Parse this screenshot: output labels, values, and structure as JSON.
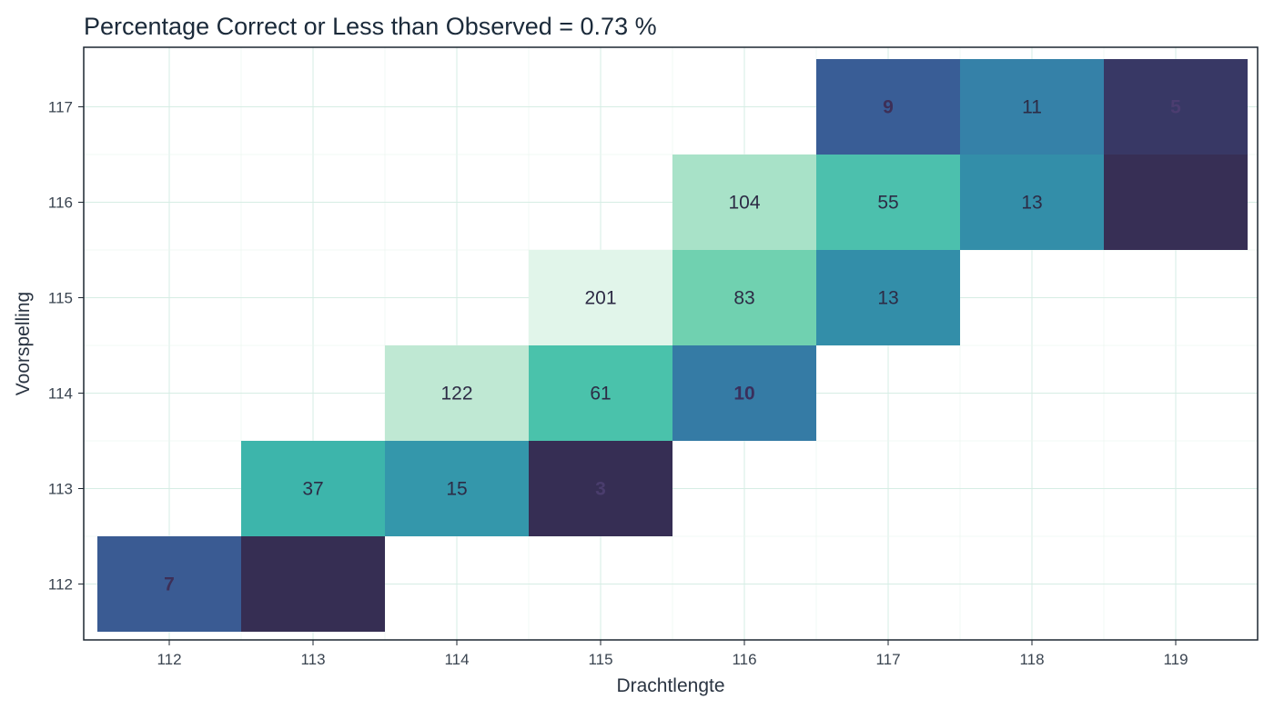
{
  "chart_data": {
    "type": "heatmap",
    "title": "Percentage Correct or Less than Observed =  0.73 %",
    "xlabel": "Drachtlengte",
    "ylabel": "Voorspelling",
    "x_categories": [
      "112",
      "113",
      "114",
      "115",
      "116",
      "117",
      "118",
      "119"
    ],
    "y_categories": [
      "112",
      "113",
      "114",
      "115",
      "116",
      "117"
    ],
    "grid": true,
    "legend": "none",
    "cells": [
      {
        "x": "112",
        "y": "112",
        "value": 7,
        "label": "7",
        "fill": "#3a5b93",
        "text_color": "#3d2f57",
        "bold": true
      },
      {
        "x": "113",
        "y": "112",
        "value": 1,
        "label": "",
        "fill": "#362e53",
        "text_color": "#362e53",
        "bold": true
      },
      {
        "x": "113",
        "y": "113",
        "value": 37,
        "label": "37",
        "fill": "#3db5ab",
        "text_color": "#2d2b45",
        "bold": false
      },
      {
        "x": "114",
        "y": "113",
        "value": 15,
        "label": "15",
        "fill": "#3497ab",
        "text_color": "#2d2b45",
        "bold": false
      },
      {
        "x": "115",
        "y": "113",
        "value": 3,
        "label": "3",
        "fill": "#362e54",
        "text_color": "#4a3d6d",
        "bold": true
      },
      {
        "x": "114",
        "y": "114",
        "value": 122,
        "label": "122",
        "fill": "#bfe8d3",
        "text_color": "#2d2b45",
        "bold": false
      },
      {
        "x": "115",
        "y": "114",
        "value": 61,
        "label": "61",
        "fill": "#4ac2ab",
        "text_color": "#2d2b45",
        "bold": false
      },
      {
        "x": "116",
        "y": "114",
        "value": 10,
        "label": "10",
        "fill": "#357ba5",
        "text_color": "#3a2f5c",
        "bold": true
      },
      {
        "x": "115",
        "y": "115",
        "value": 201,
        "label": "201",
        "fill": "#e1f5ea",
        "text_color": "#2d2b45",
        "bold": false
      },
      {
        "x": "116",
        "y": "115",
        "value": 83,
        "label": "83",
        "fill": "#70d1b0",
        "text_color": "#2d2b45",
        "bold": false
      },
      {
        "x": "117",
        "y": "115",
        "value": 13,
        "label": "13",
        "fill": "#338ea9",
        "text_color": "#2d2b45",
        "bold": false
      },
      {
        "x": "116",
        "y": "116",
        "value": 104,
        "label": "104",
        "fill": "#a8e2c8",
        "text_color": "#2d2b45",
        "bold": false
      },
      {
        "x": "117",
        "y": "116",
        "value": 55,
        "label": "55",
        "fill": "#4cc0ad",
        "text_color": "#2d2b45",
        "bold": false
      },
      {
        "x": "118",
        "y": "116",
        "value": 13,
        "label": "13",
        "fill": "#338ea9",
        "text_color": "#2d2b45",
        "bold": false
      },
      {
        "x": "119",
        "y": "116",
        "value": 1,
        "label": "",
        "fill": "#372f55",
        "text_color": "#372f55",
        "bold": true
      },
      {
        "x": "117",
        "y": "117",
        "value": 9,
        "label": "9",
        "fill": "#395d96",
        "text_color": "#3d2f57",
        "bold": true
      },
      {
        "x": "118",
        "y": "117",
        "value": 11,
        "label": "11",
        "fill": "#3581a8",
        "text_color": "#2d2b45",
        "bold": false
      },
      {
        "x": "119",
        "y": "117",
        "value": 5,
        "label": "5",
        "fill": "#383865",
        "text_color": "#4b3d70",
        "bold": true
      }
    ]
  },
  "colors": {
    "background": "#ffffff",
    "panel_border": "#1c2630",
    "grid_major": "#d6ede4",
    "grid_minor": "#ecf6f1",
    "text": "#2a3442"
  }
}
